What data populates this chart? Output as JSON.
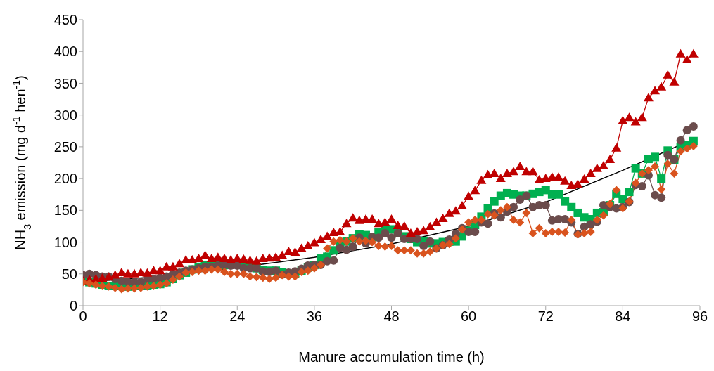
{
  "chart_data": {
    "type": "line",
    "xlabel": "Manure accumulation time (h)",
    "ylabel": "NH$_{3}$ emission (mg d$^{-1}$ hen$^{-1}$)",
    "xlim": [
      0,
      96
    ],
    "xticks": [
      0,
      12,
      24,
      36,
      48,
      60,
      72,
      84,
      96
    ],
    "ylim": [
      0,
      450
    ],
    "yticks": [
      0,
      50,
      100,
      150,
      200,
      250,
      300,
      350,
      400,
      450
    ],
    "grid": false,
    "line_style": "solid",
    "x": [
      0,
      1,
      2,
      3,
      4,
      5,
      6,
      7,
      8,
      9,
      10,
      11,
      12,
      13,
      14,
      15,
      16,
      17,
      18,
      19,
      20,
      21,
      22,
      23,
      24,
      25,
      26,
      27,
      28,
      29,
      30,
      31,
      32,
      33,
      34,
      35,
      36,
      37,
      38,
      39,
      40,
      41,
      42,
      43,
      44,
      45,
      46,
      47,
      48,
      49,
      50,
      51,
      52,
      53,
      54,
      55,
      56,
      57,
      58,
      59,
      60,
      61,
      62,
      63,
      64,
      65,
      66,
      67,
      68,
      69,
      70,
      71,
      72,
      73,
      74,
      75,
      76,
      77,
      78,
      79,
      80,
      81,
      82,
      83,
      84,
      85,
      86,
      87,
      88,
      89,
      90,
      91,
      92,
      93,
      94,
      95
    ],
    "series": [
      {
        "color": "#d9531e",
        "marker": "diamond",
        "values": [
          37,
          35,
          33,
          31,
          30,
          28,
          26,
          27,
          27,
          28,
          30,
          31,
          33,
          35,
          41,
          46,
          52,
          53,
          55,
          55,
          57,
          57,
          53,
          50,
          50,
          50,
          46,
          45,
          44,
          42,
          44,
          48,
          46,
          46,
          53,
          55,
          59,
          64,
          90,
          101,
          103,
          101,
          106,
          101,
          102,
          100,
          94,
          93,
          94,
          87,
          87,
          87,
          82,
          82,
          85,
          90,
          95,
          97,
          106,
          120,
          131,
          135,
          135,
          144,
          142,
          150,
          155,
          135,
          131,
          146,
          114,
          122,
          114,
          116,
          116,
          115,
          135,
          112,
          114,
          116,
          135,
          142,
          160,
          182,
          153,
          164,
          193,
          208,
          213,
          219,
          183,
          223,
          208,
          243,
          247,
          251
        ]
      },
      {
        "color": "#00b050",
        "marker": "square",
        "values": [
          42,
          37,
          35,
          33,
          31,
          31,
          31,
          30,
          31,
          31,
          31,
          33,
          34,
          37,
          42,
          48,
          52,
          57,
          61,
          63,
          64,
          64,
          64,
          66,
          66,
          64,
          63,
          59,
          56,
          55,
          55,
          53,
          50,
          50,
          55,
          60,
          64,
          74,
          77,
          87,
          96,
          101,
          106,
          112,
          111,
          108,
          116,
          120,
          120,
          114,
          109,
          105,
          100,
          101,
          98,
          98,
          100,
          101,
          101,
          109,
          118,
          127,
          140,
          153,
          164,
          173,
          177,
          175,
          173,
          173,
          176,
          179,
          182,
          175,
          175,
          164,
          155,
          146,
          139,
          136,
          146,
          147,
          158,
          176,
          168,
          179,
          216,
          208,
          231,
          234,
          200,
          244,
          230,
          250,
          253,
          259
        ]
      },
      {
        "color": "#6b4c4c",
        "marker": "circle",
        "values": [
          48,
          50,
          48,
          46,
          46,
          42,
          39,
          37,
          37,
          37,
          42,
          42,
          44,
          46,
          50,
          52,
          55,
          57,
          59,
          61,
          61,
          63,
          64,
          63,
          63,
          59,
          59,
          59,
          54,
          53,
          55,
          49,
          52,
          54,
          58,
          63,
          64,
          64,
          70,
          71,
          91,
          88,
          93,
          107,
          98,
          108,
          107,
          114,
          107,
          114,
          105,
          105,
          105,
          94,
          101,
          90,
          95,
          104,
          113,
          122,
          116,
          116,
          131,
          129,
          145,
          139,
          148,
          155,
          167,
          173,
          155,
          158,
          158,
          134,
          136,
          136,
          131,
          113,
          124,
          128,
          132,
          158,
          155,
          153,
          155,
          163,
          190,
          188,
          205,
          174,
          170,
          237,
          230,
          260,
          276,
          282
        ]
      },
      {
        "color": "#c00000",
        "marker": "triangle",
        "values": [
          39,
          41,
          42,
          43,
          45,
          48,
          52,
          50,
          50,
          52,
          51,
          55,
          55,
          61,
          61,
          66,
          72,
          72,
          74,
          79,
          74,
          76,
          74,
          72,
          74,
          73,
          71,
          70,
          74,
          75,
          76,
          79,
          85,
          84,
          90,
          94,
          99,
          104,
          109,
          115,
          116,
          129,
          138,
          134,
          136,
          136,
          129,
          131,
          136,
          126,
          125,
          114,
          116,
          118,
          124,
          131,
          137,
          145,
          149,
          157,
          172,
          181,
          197,
          206,
          208,
          200,
          208,
          211,
          219,
          211,
          211,
          198,
          200,
          202,
          202,
          196,
          189,
          191,
          199,
          208,
          216,
          220,
          230,
          248,
          291,
          296,
          289,
          296,
          327,
          338,
          344,
          363,
          352,
          396,
          387,
          396
        ]
      },
      {
        "type": "line",
        "color": "#000000",
        "marker": "none",
        "x": [
          0,
          12,
          24,
          36,
          48,
          60,
          72,
          84,
          95
        ],
        "values": [
          37,
          46,
          60,
          76,
          97,
          125,
          163,
          213,
          262
        ]
      }
    ]
  }
}
